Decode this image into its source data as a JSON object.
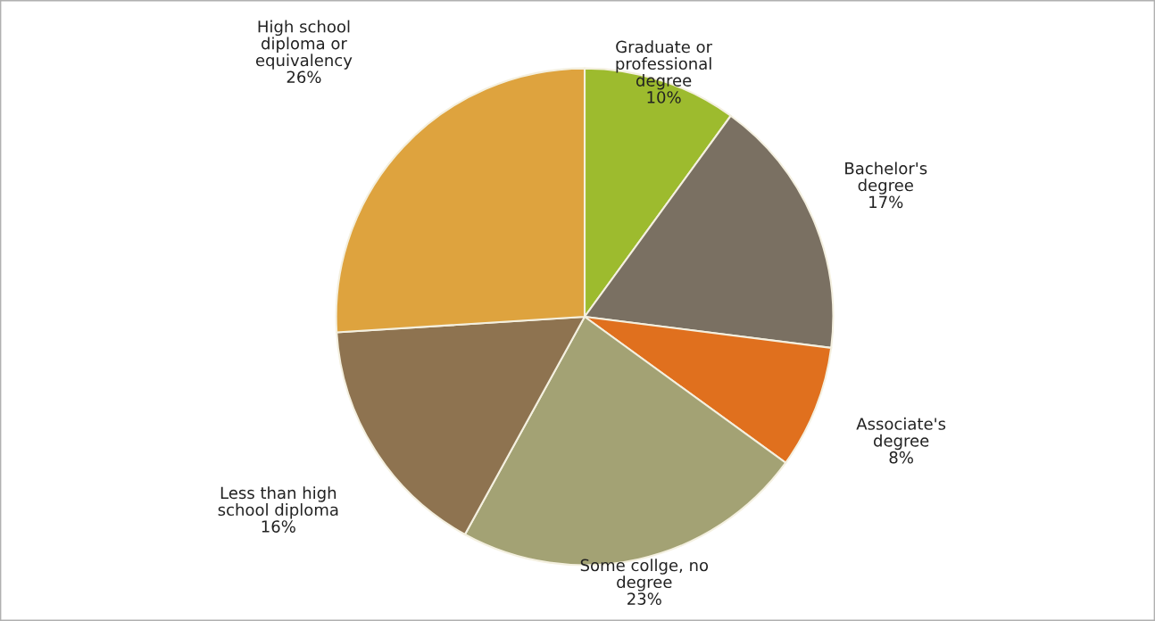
{
  "chart_data": {
    "type": "pie",
    "categories": [
      "Graduate or professional degree",
      "Bachelor's degree",
      "Associate's degree",
      "Some collge, no degree",
      "Less than high school diploma",
      "High school diploma or equivalency"
    ],
    "values": [
      10,
      17,
      8,
      23,
      16,
      26
    ],
    "colors": [
      "#9dbb2e",
      "#7a7062",
      "#e0701e",
      "#a3a274",
      "#8e7350",
      "#dea33e"
    ],
    "value_labels": [
      "10%",
      "17%",
      "8%",
      "23%",
      "16%",
      "26%"
    ],
    "legend": false
  }
}
